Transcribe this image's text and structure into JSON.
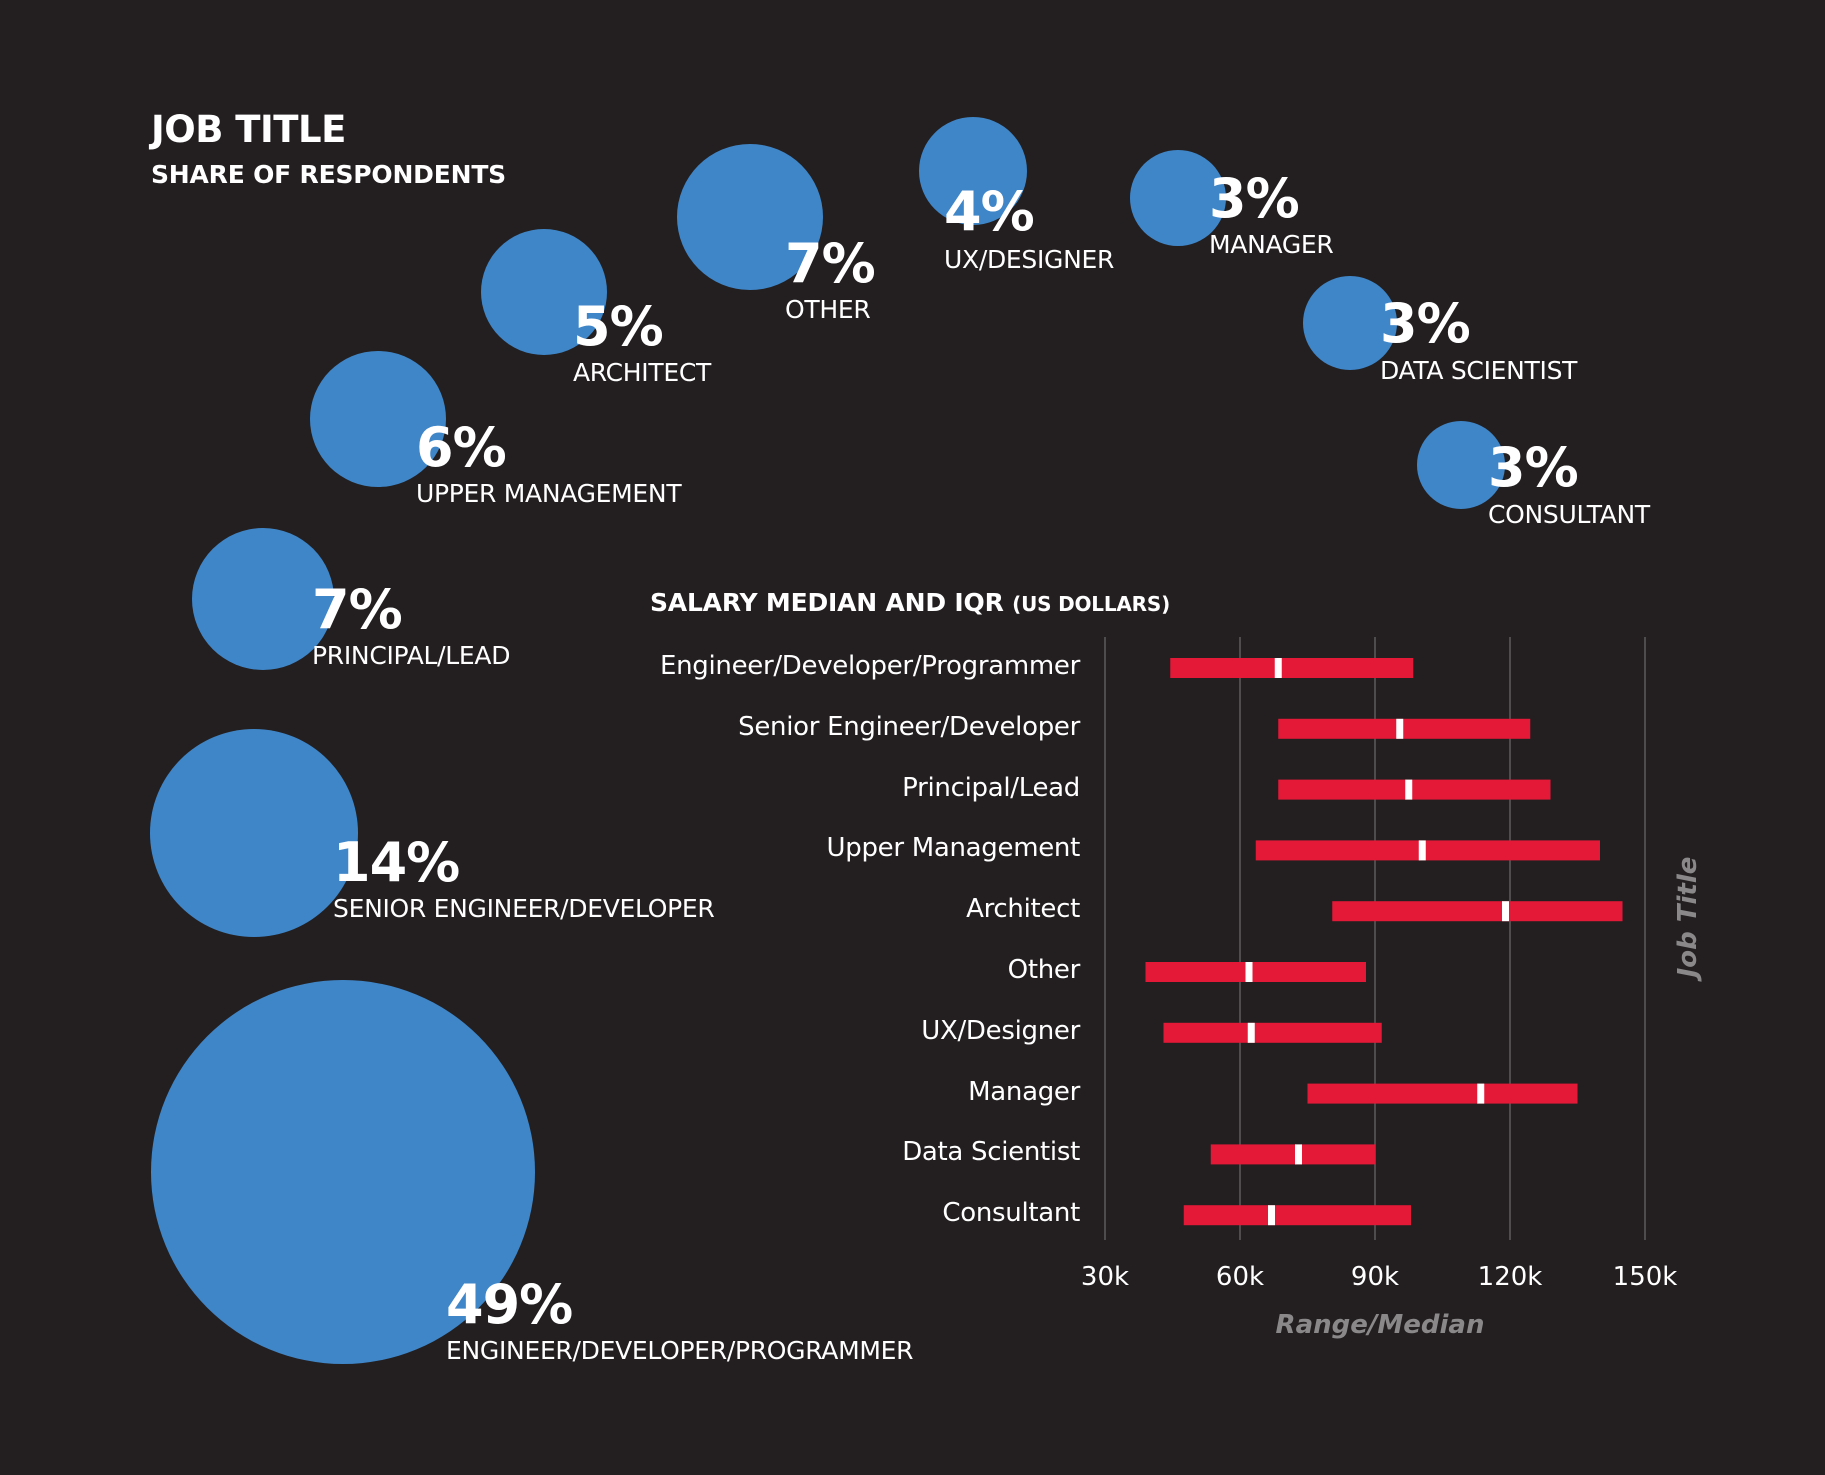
{
  "share": {
    "title": "JOB TITLE",
    "subtitle": "SHARE OF RESPONDENTS"
  },
  "salary": {
    "title": "SALARY MEDIAN AND IQR",
    "unit": "(US DOLLARS)",
    "xlabel": "Range/Median",
    "ylabel": "Job Title"
  },
  "colors": {
    "background": "#231f20",
    "bubble": "#3f86c8",
    "bar": "#e31937",
    "median": "#ffffff",
    "grid": "#6d6b6c",
    "axis_title": "#8a8889"
  },
  "chart_data": [
    {
      "type": "bubble",
      "title": "JOB TITLE",
      "subtitle": "SHARE OF RESPONDENTS",
      "items": [
        {
          "category": "ENGINEER/DEVELOPER/PROGRAMMER",
          "value": 49,
          "pct_label": "49%"
        },
        {
          "category": "SENIOR ENGINEER/DEVELOPER",
          "value": 14,
          "pct_label": "14%"
        },
        {
          "category": "PRINCIPAL/LEAD",
          "value": 7,
          "pct_label": "7%"
        },
        {
          "category": "UPPER MANAGEMENT",
          "value": 6,
          "pct_label": "6%"
        },
        {
          "category": "ARCHITECT",
          "value": 5,
          "pct_label": "5%"
        },
        {
          "category": "OTHER",
          "value": 7,
          "pct_label": "7%"
        },
        {
          "category": "UX/DESIGNER",
          "value": 4,
          "pct_label": "4%"
        },
        {
          "category": "MANAGER",
          "value": 3,
          "pct_label": "3%"
        },
        {
          "category": "DATA SCIENTIST",
          "value": 3,
          "pct_label": "3%"
        },
        {
          "category": "CONSULTANT",
          "value": 3,
          "pct_label": "3%"
        }
      ]
    },
    {
      "type": "range",
      "title": "SALARY MEDIAN AND IQR (US DOLLARS)",
      "xlabel": "Range/Median",
      "ylabel": "Job Title",
      "xlim": [
        30000,
        150000
      ],
      "xticks": [
        30000,
        60000,
        90000,
        120000,
        150000
      ],
      "xtick_labels": [
        "30k",
        "60k",
        "90k",
        "120k",
        "150k"
      ],
      "grid": true,
      "categories": [
        "Engineer/Developer/Programmer",
        "Senior Engineer/Developer",
        "Principal/Lead",
        "Upper Management",
        "Architect",
        "Other",
        "UX/Designer",
        "Manager",
        "Data Scientist",
        "Consultant"
      ],
      "low": [
        44500,
        68500,
        68500,
        63500,
        80500,
        39000,
        43000,
        75000,
        53500,
        47500
      ],
      "median": [
        68500,
        95500,
        97500,
        100500,
        119000,
        62000,
        62500,
        113500,
        73000,
        67000
      ],
      "high": [
        98500,
        124500,
        129000,
        140000,
        145000,
        88000,
        91500,
        135000,
        90000,
        98000
      ]
    }
  ]
}
